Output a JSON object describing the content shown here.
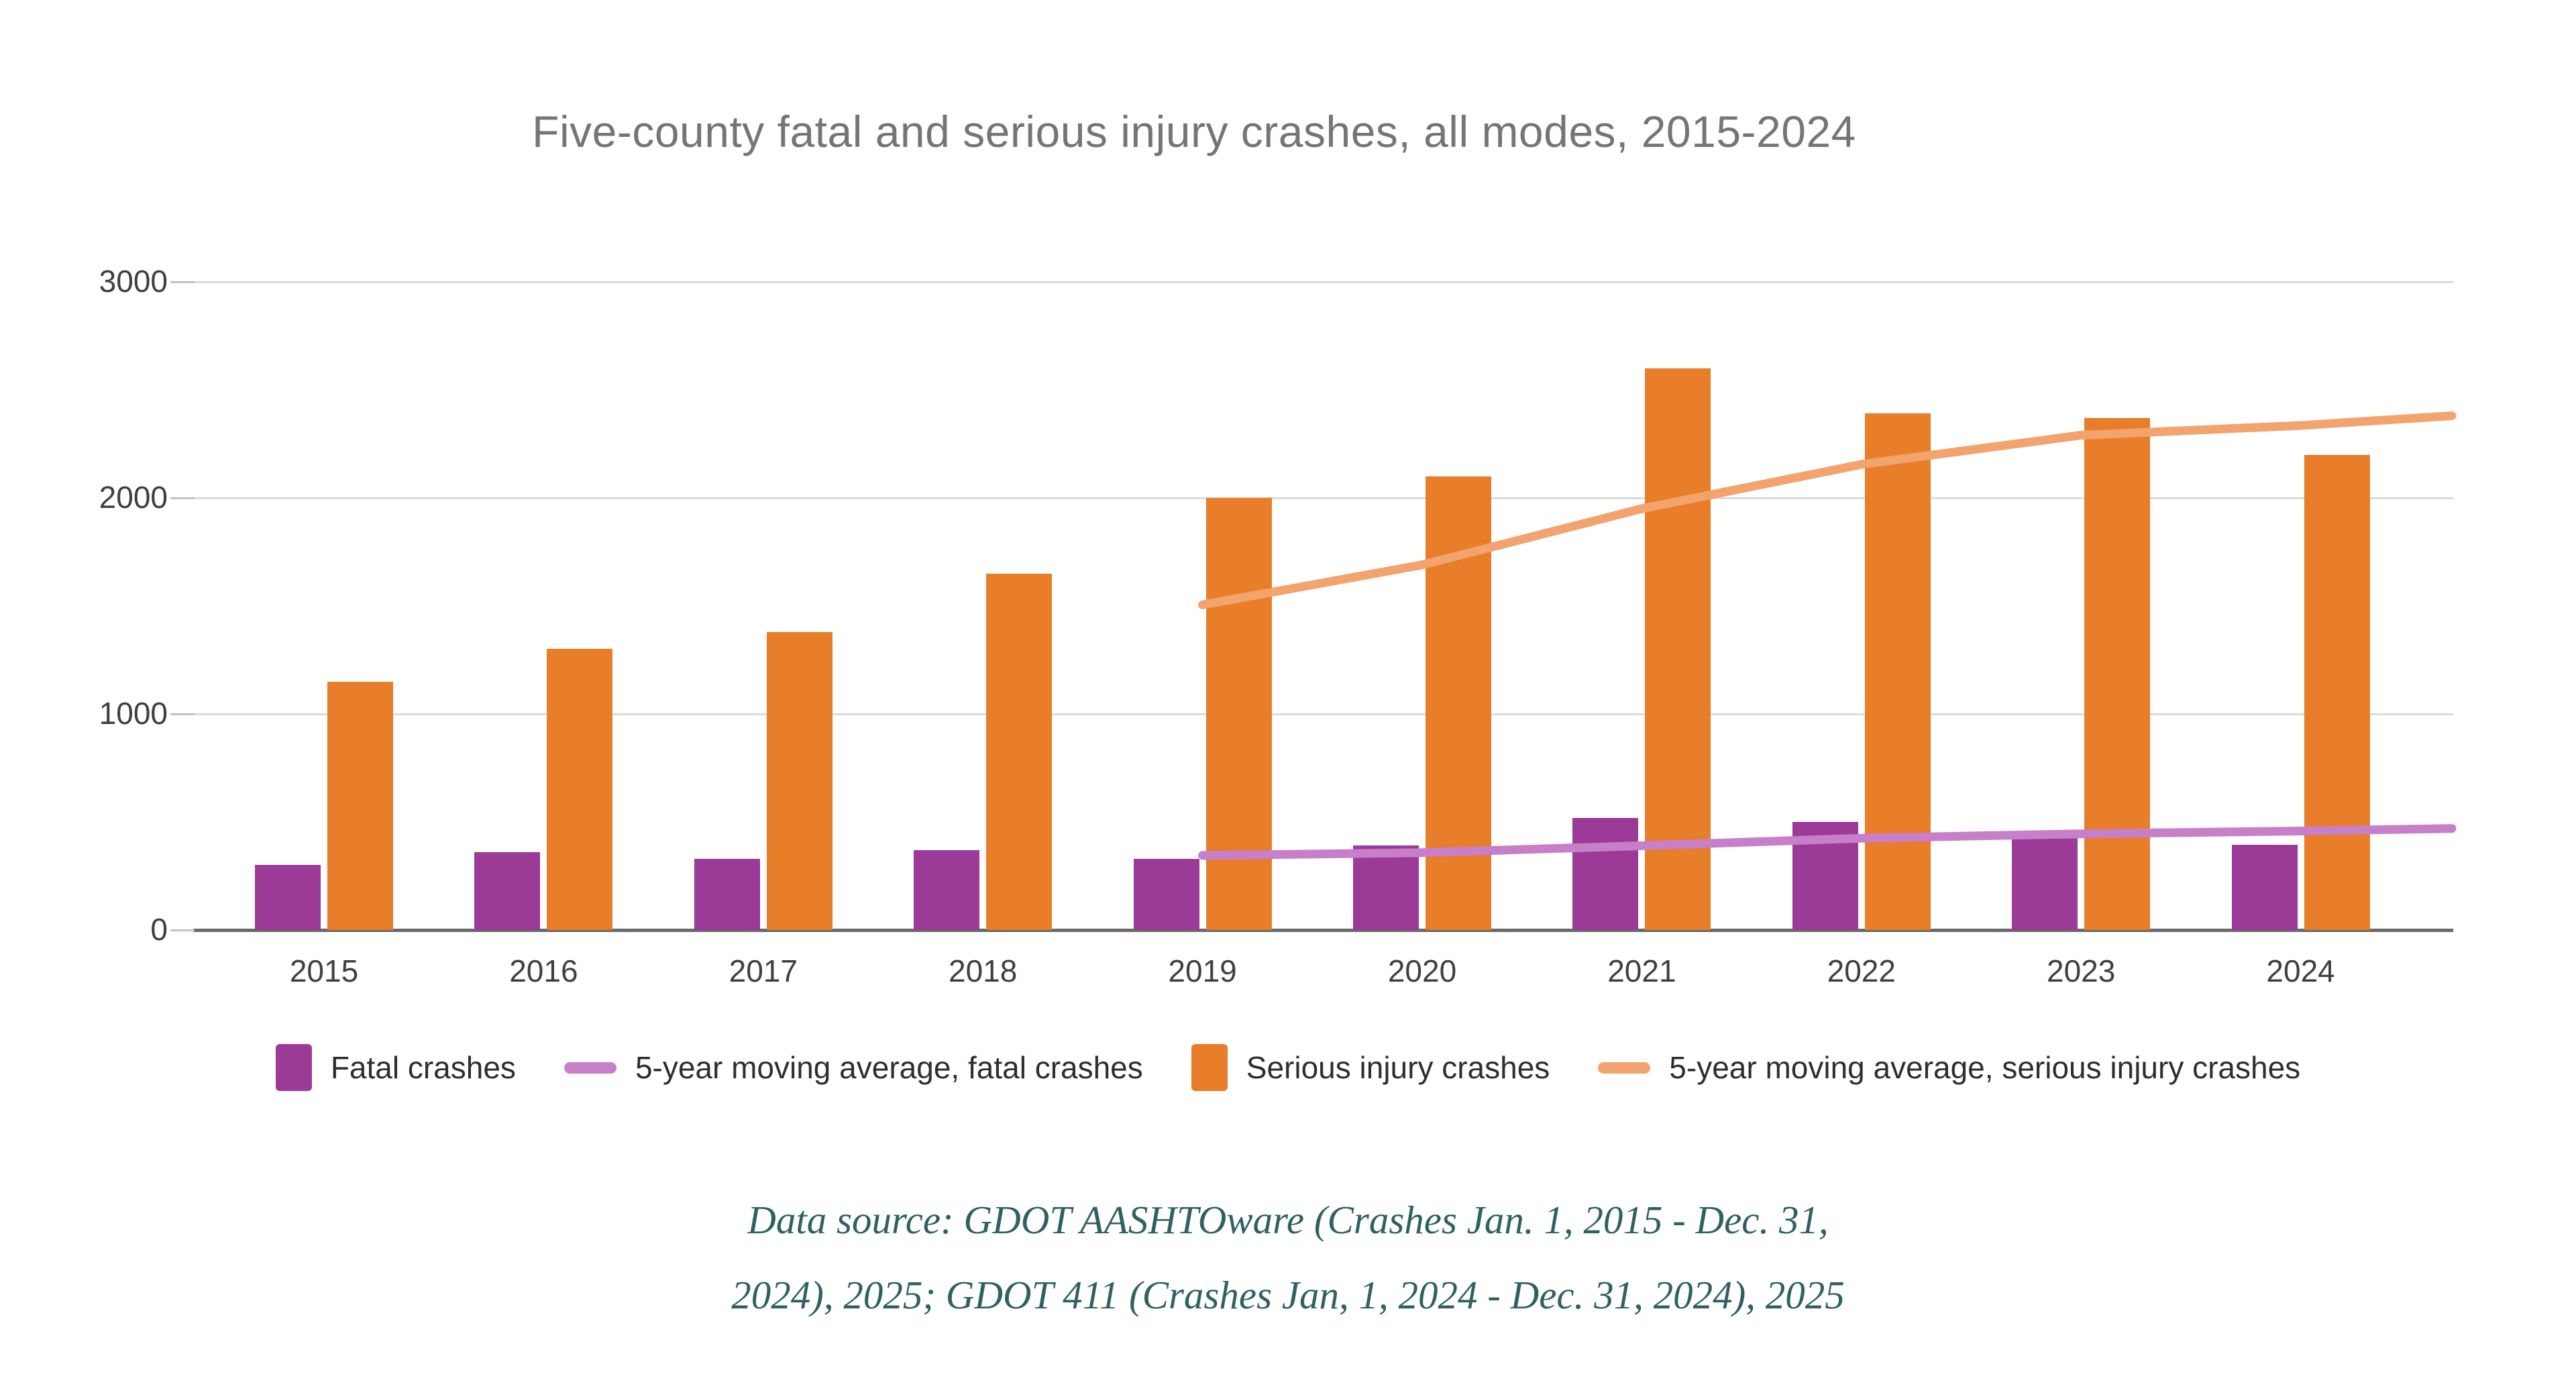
{
  "chart_title": "Five-county fatal and serious injury crashes, all modes, 2015-2024",
  "chart_data": {
    "type": "bar",
    "title": "Five-county fatal and serious injury crashes, all modes, 2015-2024",
    "categories": [
      "2015",
      "2016",
      "2017",
      "2018",
      "2019",
      "2020",
      "2021",
      "2022",
      "2023",
      "2024"
    ],
    "series": [
      {
        "name": "Fatal crashes",
        "type": "bar",
        "color": "#9b3a97",
        "values": [
          300,
          360,
          330,
          370,
          330,
          390,
          520,
          500,
          430,
          395
        ]
      },
      {
        "name": "Serious injury crashes",
        "type": "bar",
        "color": "#e87d2a",
        "values": [
          1150,
          1300,
          1380,
          1650,
          2000,
          2100,
          2600,
          2390,
          2370,
          2200
        ]
      },
      {
        "name": "5-year moving average, fatal crashes",
        "type": "line",
        "color": "#c77fc9",
        "x": [
          "2019",
          "2020",
          "2021",
          "2022",
          "2023",
          "2024"
        ],
        "values": [
          345,
          358,
          390,
          425,
          445,
          458
        ],
        "edge_value": 470
      },
      {
        "name": "5-year moving average, serious injury crashes",
        "type": "line",
        "color": "#f2a36e",
        "x": [
          "2019",
          "2020",
          "2021",
          "2022",
          "2023",
          "2024"
        ],
        "values": [
          1505,
          1690,
          1950,
          2155,
          2290,
          2335
        ],
        "edge_value": 2380
      }
    ],
    "xlabel": "",
    "ylabel": "",
    "ylim": [
      0,
      3000
    ],
    "y_ticks": [
      0,
      1000,
      2000,
      3000
    ],
    "grid": true,
    "legend_position": "bottom"
  },
  "legend": {
    "items": [
      {
        "label": "Fatal crashes",
        "swatch": "square",
        "color": "#9b3a97"
      },
      {
        "label": "5-year moving average, fatal crashes",
        "swatch": "dash",
        "color": "#c77fc9"
      },
      {
        "label": "Serious injury crashes",
        "swatch": "square",
        "color": "#e87d2a"
      },
      {
        "label": "5-year moving average, serious injury crashes",
        "swatch": "dash",
        "color": "#f2a36e"
      }
    ]
  },
  "footer": {
    "line1": "Data source: GDOT AASHTOware (Crashes Jan. 1, 2015 - Dec. 31,",
    "line2": "2024), 2025; GDOT 411 (Crashes Jan, 1, 2024 - Dec. 31, 2024), 2025"
  },
  "colors": {
    "fatal_bar": "#9b3a97",
    "serious_bar": "#e87d2a",
    "fatal_ma_line": "#c77fc9",
    "serious_ma_line": "#f2a36e",
    "gridline": "#dbdbdb",
    "axis_line": "#6a6a6a",
    "title_text": "#757575",
    "axis_text": "#3f3f3f",
    "footer_text": "#2f6161"
  }
}
